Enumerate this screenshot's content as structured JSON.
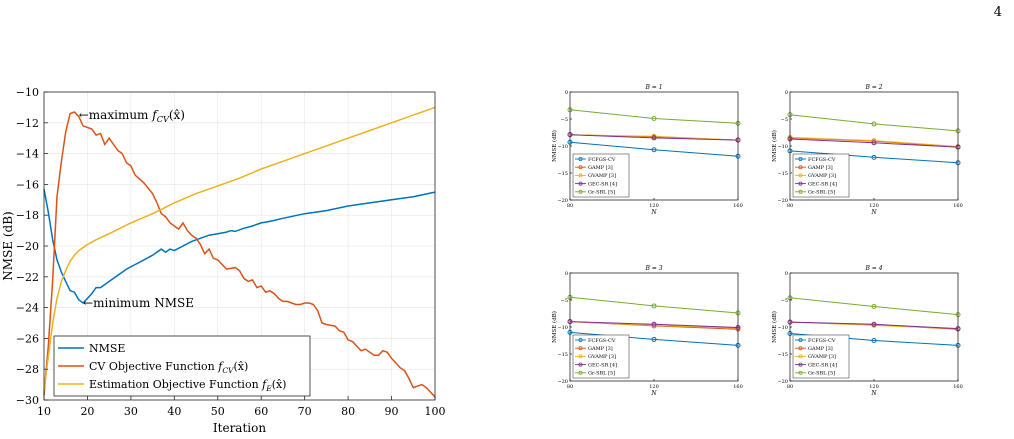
{
  "page": {
    "number": "4"
  },
  "chart_data": [
    {
      "type": "line",
      "title": "",
      "xlabel": "Iteration",
      "ylabel": "NMSE (dB)",
      "xlim": [
        10,
        100
      ],
      "ylim": [
        -30,
        -10
      ],
      "xticks": [
        10,
        20,
        30,
        40,
        50,
        60,
        70,
        80,
        90,
        100
      ],
      "yticks": [
        -10,
        -12,
        -14,
        -16,
        -18,
        -20,
        -22,
        -24,
        -26,
        -28,
        -30
      ],
      "grid": true,
      "legend_position": "bottom-left",
      "colors": {
        "nmse": "#0072BD",
        "cv": "#D95319",
        "est": "#EDB120"
      },
      "series": [
        {
          "name": "NMSE",
          "color": "#0072BD",
          "points": [
            [
              10,
              -16.3
            ],
            [
              11,
              -17.8
            ],
            [
              12,
              -19.6
            ],
            [
              13,
              -20.9
            ],
            [
              14,
              -21.7
            ],
            [
              15,
              -22.3
            ],
            [
              16,
              -22.9
            ],
            [
              17,
              -23.0
            ],
            [
              18,
              -23.5
            ],
            [
              19,
              -23.7
            ],
            [
              20,
              -23.4
            ],
            [
              21,
              -23.1
            ],
            [
              22,
              -22.7
            ],
            [
              23,
              -22.7
            ],
            [
              25,
              -22.3
            ],
            [
              27,
              -21.9
            ],
            [
              29,
              -21.5
            ],
            [
              31,
              -21.2
            ],
            [
              33,
              -20.9
            ],
            [
              35,
              -20.6
            ],
            [
              37,
              -20.2
            ],
            [
              38,
              -20.4
            ],
            [
              39,
              -20.2
            ],
            [
              40,
              -20.3
            ],
            [
              42,
              -20.0
            ],
            [
              44,
              -19.7
            ],
            [
              46,
              -19.5
            ],
            [
              48,
              -19.3
            ],
            [
              50,
              -19.2
            ],
            [
              52,
              -19.1
            ],
            [
              53,
              -19.0
            ],
            [
              54,
              -19.05
            ],
            [
              56,
              -18.85
            ],
            [
              58,
              -18.7
            ],
            [
              60,
              -18.5
            ],
            [
              62,
              -18.4
            ],
            [
              65,
              -18.2
            ],
            [
              70,
              -17.9
            ],
            [
              75,
              -17.7
            ],
            [
              80,
              -17.4
            ],
            [
              85,
              -17.2
            ],
            [
              90,
              -17.0
            ],
            [
              95,
              -16.8
            ],
            [
              100,
              -16.5
            ]
          ]
        },
        {
          "name": "CV Objective Function f_CV(x̂)",
          "color": "#D95319",
          "points": [
            [
              10,
              -29.7
            ],
            [
              11,
              -26.5
            ],
            [
              12,
              -22.2
            ],
            [
              13,
              -16.8
            ],
            [
              14,
              -14.5
            ],
            [
              15,
              -12.6
            ],
            [
              16,
              -11.4
            ],
            [
              17,
              -11.3
            ],
            [
              18,
              -11.6
            ],
            [
              19,
              -12.2
            ],
            [
              20,
              -12.3
            ],
            [
              21,
              -12.4
            ],
            [
              22,
              -12.8
            ],
            [
              23,
              -12.7
            ],
            [
              24,
              -13.4
            ],
            [
              25,
              -13.0
            ],
            [
              26,
              -13.4
            ],
            [
              27,
              -13.8
            ],
            [
              28,
              -14.0
            ],
            [
              29,
              -14.6
            ],
            [
              30,
              -14.8
            ],
            [
              31,
              -15.4
            ],
            [
              33,
              -15.9
            ],
            [
              35,
              -16.6
            ],
            [
              36,
              -17.2
            ],
            [
              37,
              -17.9
            ],
            [
              38,
              -18.1
            ],
            [
              39,
              -18.5
            ],
            [
              40,
              -18.7
            ],
            [
              41,
              -18.9
            ],
            [
              42,
              -18.5
            ],
            [
              43,
              -19.0
            ],
            [
              44,
              -19.3
            ],
            [
              45,
              -19.5
            ],
            [
              46,
              -19.9
            ],
            [
              47,
              -20.5
            ],
            [
              48,
              -20.2
            ],
            [
              49,
              -20.8
            ],
            [
              50,
              -20.9
            ],
            [
              51,
              -21.2
            ],
            [
              52,
              -21.5
            ],
            [
              54,
              -21.4
            ],
            [
              55,
              -21.6
            ],
            [
              56,
              -22.1
            ],
            [
              57,
              -22.3
            ],
            [
              58,
              -22.2
            ],
            [
              59,
              -22.7
            ],
            [
              60,
              -22.6
            ],
            [
              61,
              -23.0
            ],
            [
              62,
              -22.9
            ],
            [
              63,
              -23.1
            ],
            [
              64,
              -23.4
            ],
            [
              65,
              -23.6
            ],
            [
              66,
              -23.6
            ],
            [
              67,
              -23.7
            ],
            [
              68,
              -23.8
            ],
            [
              69,
              -23.8
            ],
            [
              70,
              -23.7
            ],
            [
              71,
              -23.7
            ],
            [
              72,
              -23.8
            ],
            [
              73,
              -24.2
            ],
            [
              74,
              -25.0
            ],
            [
              75,
              -25.1
            ],
            [
              77,
              -25.2
            ],
            [
              78,
              -25.5
            ],
            [
              79,
              -25.6
            ],
            [
              80,
              -26.1
            ],
            [
              81,
              -26.2
            ],
            [
              82,
              -26.5
            ],
            [
              83,
              -26.8
            ],
            [
              84,
              -26.7
            ],
            [
              85,
              -26.9
            ],
            [
              86,
              -27.1
            ],
            [
              87,
              -27.1
            ],
            [
              88,
              -26.8
            ],
            [
              89,
              -26.9
            ],
            [
              90,
              -27.3
            ],
            [
              91,
              -27.6
            ],
            [
              92,
              -27.9
            ],
            [
              93,
              -28.1
            ],
            [
              94,
              -28.6
            ],
            [
              95,
              -29.2
            ],
            [
              96,
              -29.1
            ],
            [
              97,
              -29.0
            ],
            [
              98,
              -29.2
            ],
            [
              99,
              -29.5
            ],
            [
              100,
              -29.8
            ]
          ]
        },
        {
          "name": "Estimation Objective Function f_E(x̂)",
          "color": "#EDB120",
          "points": [
            [
              10,
              -29.4
            ],
            [
              11,
              -27.2
            ],
            [
              12,
              -25.0
            ],
            [
              13,
              -23.4
            ],
            [
              14,
              -22.3
            ],
            [
              15,
              -21.6
            ],
            [
              16,
              -21.0
            ],
            [
              17,
              -20.6
            ],
            [
              18,
              -20.3
            ],
            [
              20,
              -19.9
            ],
            [
              22,
              -19.6
            ],
            [
              25,
              -19.2
            ],
            [
              30,
              -18.5
            ],
            [
              35,
              -17.9
            ],
            [
              40,
              -17.2
            ],
            [
              45,
              -16.6
            ],
            [
              50,
              -16.1
            ],
            [
              55,
              -15.6
            ],
            [
              60,
              -15.0
            ],
            [
              65,
              -14.5
            ],
            [
              70,
              -14.0
            ],
            [
              75,
              -13.5
            ],
            [
              80,
              -13.0
            ],
            [
              85,
              -12.5
            ],
            [
              90,
              -12.0
            ],
            [
              95,
              -11.5
            ],
            [
              100,
              -11.0
            ]
          ]
        }
      ],
      "legend": [
        "NMSE",
        "CV Objective Function f_CV(x̂)",
        "Estimation Objective Function f_E(x̂)"
      ],
      "annotations": [
        {
          "text": "←maximum f_CV(x̂)",
          "x": 18,
          "y": -11.5
        },
        {
          "text": "←minimum NMSE",
          "x": 19,
          "y": -23.7
        }
      ]
    },
    {
      "type": "line",
      "title": "B = 1",
      "xlabel": "N",
      "ylabel": "NMSE (dB)",
      "x": [
        80,
        120,
        160
      ],
      "xlim": [
        80,
        160
      ],
      "ylim": [
        -20,
        0
      ],
      "xticks": [
        80,
        120,
        160
      ],
      "yticks": [
        0,
        -5,
        -10,
        -15,
        -20
      ],
      "grid": false,
      "legend_position": "bottom-left",
      "series": [
        {
          "name": "FCFGS-CV",
          "color": "#0072BD",
          "values": [
            -9.3,
            -10.7,
            -11.9
          ]
        },
        {
          "name": "GAMP [3]",
          "color": "#D95319",
          "values": [
            -7.9,
            -8.3,
            -8.9
          ]
        },
        {
          "name": "GVAMP [3]",
          "color": "#EDB120",
          "values": [
            -7.9,
            -8.2,
            -8.9
          ]
        },
        {
          "name": "GEC-SR [4]",
          "color": "#7E2F8E",
          "values": [
            -7.9,
            -8.5,
            -8.9
          ]
        },
        {
          "name": "Gr-SBL [5]",
          "color": "#77AC30",
          "values": [
            -3.3,
            -4.9,
            -5.8
          ]
        }
      ]
    },
    {
      "type": "line",
      "title": "B = 2",
      "xlabel": "N",
      "ylabel": "NMSE (dB)",
      "x": [
        80,
        120,
        160
      ],
      "xlim": [
        80,
        160
      ],
      "ylim": [
        -20,
        0
      ],
      "xticks": [
        80,
        120,
        160
      ],
      "yticks": [
        0,
        -5,
        -10,
        -15,
        -20
      ],
      "grid": false,
      "legend_position": "bottom-left",
      "series": [
        {
          "name": "FCFGS-CV",
          "color": "#0072BD",
          "values": [
            -10.9,
            -12.1,
            -13.1
          ]
        },
        {
          "name": "GAMP [3]",
          "color": "#D95319",
          "values": [
            -8.5,
            -9.1,
            -10.2
          ]
        },
        {
          "name": "GVAMP [3]",
          "color": "#EDB120",
          "values": [
            -8.4,
            -9.0,
            -10.1
          ]
        },
        {
          "name": "GEC-SR [4]",
          "color": "#7E2F8E",
          "values": [
            -8.7,
            -9.4,
            -10.2
          ]
        },
        {
          "name": "Gr-SBL [5]",
          "color": "#77AC30",
          "values": [
            -4.2,
            -5.9,
            -7.2
          ]
        }
      ]
    },
    {
      "type": "line",
      "title": "B = 3",
      "xlabel": "N",
      "ylabel": "NMSE (dB)",
      "x": [
        80,
        120,
        160
      ],
      "xlim": [
        80,
        160
      ],
      "ylim": [
        -20,
        0
      ],
      "xticks": [
        80,
        120,
        160
      ],
      "yticks": [
        0,
        -5,
        -10,
        -15,
        -20
      ],
      "grid": false,
      "legend_position": "bottom-left",
      "series": [
        {
          "name": "FCFGS-CV",
          "color": "#0072BD",
          "values": [
            -11.0,
            -12.3,
            -13.4
          ]
        },
        {
          "name": "GAMP [3]",
          "color": "#D95319",
          "values": [
            -9.0,
            -9.8,
            -10.4
          ]
        },
        {
          "name": "GVAMP [3]",
          "color": "#EDB120",
          "values": [
            -9.0,
            -9.7,
            -10.2
          ]
        },
        {
          "name": "GEC-SR [4]",
          "color": "#7E2F8E",
          "values": [
            -9.0,
            -9.5,
            -10.1
          ]
        },
        {
          "name": "Gr-SBL [5]",
          "color": "#77AC30",
          "values": [
            -4.5,
            -6.1,
            -7.4
          ]
        }
      ]
    },
    {
      "type": "line",
      "title": "B = 4",
      "xlabel": "N",
      "ylabel": "NMSE (dB)",
      "x": [
        80,
        120,
        160
      ],
      "xlim": [
        80,
        160
      ],
      "ylim": [
        -20,
        0
      ],
      "xticks": [
        80,
        120,
        160
      ],
      "yticks": [
        0,
        -5,
        -10,
        -15,
        -20
      ],
      "grid": false,
      "legend_position": "bottom-left",
      "series": [
        {
          "name": "FCFGS-CV",
          "color": "#0072BD",
          "values": [
            -11.2,
            -12.5,
            -13.4
          ]
        },
        {
          "name": "GAMP [3]",
          "color": "#D95319",
          "values": [
            -9.1,
            -9.6,
            -10.4
          ]
        },
        {
          "name": "GVAMP [3]",
          "color": "#EDB120",
          "values": [
            -9.1,
            -9.7,
            -10.3
          ]
        },
        {
          "name": "GEC-SR [4]",
          "color": "#7E2F8E",
          "values": [
            -9.1,
            -9.5,
            -10.3
          ]
        },
        {
          "name": "Gr-SBL [5]",
          "color": "#77AC30",
          "values": [
            -4.6,
            -6.2,
            -7.7
          ]
        }
      ]
    }
  ]
}
